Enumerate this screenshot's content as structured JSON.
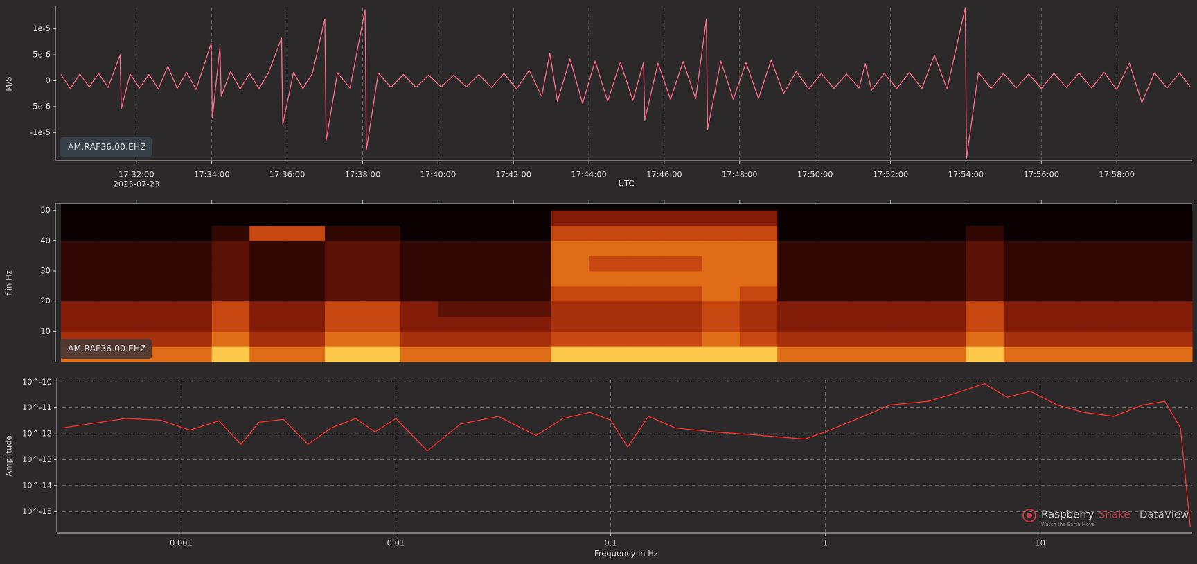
{
  "chart_data": [
    {
      "type": "line",
      "ylabel": "M/S",
      "xlabel": "UTC",
      "date_label": "2023-07-23",
      "station_label": "AM.RAF36.00.EHZ",
      "color": "#ff6e8c",
      "grid": true,
      "xlim": [
        "17:30:00",
        "18:00:00"
      ],
      "xticks": [
        "17:32:00",
        "17:34:00",
        "17:36:00",
        "17:38:00",
        "17:40:00",
        "17:42:00",
        "17:44:00",
        "17:46:00",
        "17:48:00",
        "17:50:00",
        "17:52:00",
        "17:54:00",
        "17:56:00",
        "17:58:00"
      ],
      "ylim": [
        -1.53e-05,
        1.41e-05
      ],
      "yticks": [
        {
          "value": 1e-05,
          "label": "1e-5"
        },
        {
          "value": 5e-06,
          "label": "5e-6"
        },
        0,
        {
          "value": -5e-06,
          "label": "-5e-6"
        },
        {
          "value": -1e-05,
          "label": "-1e-5"
        }
      ],
      "x": [
        "17:30:00",
        "17:30:15",
        "17:30:30",
        "17:30:45",
        "17:31:00",
        "17:31:15",
        "17:31:34",
        "17:31:36",
        "17:31:50",
        "17:32:05",
        "17:32:20",
        "17:32:35",
        "17:32:50",
        "17:33:05",
        "17:33:20",
        "17:33:35",
        "17:33:59",
        "17:34:01",
        "17:34:13",
        "17:34:15",
        "17:34:30",
        "17:34:45",
        "17:35:00",
        "17:35:15",
        "17:35:30",
        "17:35:51",
        "17:35:53",
        "17:36:10",
        "17:36:25",
        "17:36:40",
        "17:37:00",
        "17:37:02",
        "17:37:20",
        "17:37:40",
        "17:38:04",
        "17:38:06",
        "17:38:25",
        "17:38:45",
        "17:39:05",
        "17:39:25",
        "17:39:45",
        "17:40:05",
        "17:40:25",
        "17:40:45",
        "17:41:05",
        "17:41:25",
        "17:41:45",
        "17:42:05",
        "17:42:25",
        "17:42:45",
        "17:42:58",
        "17:43:10",
        "17:43:30",
        "17:43:50",
        "17:44:10",
        "17:44:30",
        "17:44:50",
        "17:45:10",
        "17:45:27",
        "17:45:29",
        "17:45:50",
        "17:46:10",
        "17:46:30",
        "17:46:50",
        "17:47:07",
        "17:47:09",
        "17:47:30",
        "17:47:50",
        "17:48:10",
        "17:48:30",
        "17:48:50",
        "17:49:10",
        "17:49:30",
        "17:49:50",
        "17:50:10",
        "17:50:30",
        "17:50:50",
        "17:51:10",
        "17:51:20",
        "17:51:30",
        "17:51:50",
        "17:52:10",
        "17:52:30",
        "17:52:50",
        "17:53:10",
        "17:53:30",
        "17:53:59",
        "17:54:01",
        "17:54:20",
        "17:54:40",
        "17:55:00",
        "17:55:20",
        "17:55:40",
        "17:56:00",
        "17:56:20",
        "17:56:40",
        "17:57:00",
        "17:57:20",
        "17:57:40",
        "17:58:00",
        "17:58:20",
        "17:58:40",
        "17:59:00",
        "17:59:20",
        "17:59:40",
        "17:59:57"
      ],
      "values": [
        1.2e-06,
        -1.5e-06,
        1.3e-06,
        -1.2e-06,
        1.4e-06,
        -1.3e-06,
        5e-06,
        -5.4e-06,
        1.3e-06,
        -1.4e-06,
        1.2e-06,
        -1.6e-06,
        2.8e-06,
        -1.5e-06,
        1.6e-06,
        -1.7e-06,
        7.2e-06,
        -7.2e-06,
        6.5e-06,
        -3e-06,
        1.8e-06,
        -1.6e-06,
        1.4e-06,
        -1.5e-06,
        1.5e-06,
        8.2e-06,
        -8.4e-06,
        1.6e-06,
        -1.5e-06,
        1.4e-06,
        1.19e-05,
        -1.16e-05,
        1.5e-06,
        -1.4e-06,
        1.37e-05,
        -1.34e-05,
        1.5e-06,
        -1.3e-06,
        1.2e-06,
        -1.3e-06,
        1.1e-06,
        -1.2e-06,
        1.1e-06,
        -1.2e-06,
        1.2e-06,
        -1.3e-06,
        1.4e-06,
        -1.6e-06,
        2e-06,
        -3e-06,
        5.3e-06,
        -4e-06,
        4.2e-06,
        -4.4e-06,
        3.8e-06,
        -4e-06,
        3.6e-06,
        -3.8e-06,
        3.5e-06,
        -7.6e-06,
        3.4e-06,
        -3.6e-06,
        3.7e-06,
        -3.5e-06,
        1.19e-05,
        -9.4e-06,
        3.8e-06,
        -3.6e-06,
        3.5e-06,
        -3.4e-06,
        4e-06,
        -2.5e-06,
        1.8e-06,
        -1.6e-06,
        1.4e-06,
        -1.5e-06,
        1.3e-06,
        -1.4e-06,
        3.3e-06,
        -1.8e-06,
        1.4e-06,
        -1.5e-06,
        1.6e-06,
        -1.5e-06,
        4.9e-06,
        -1.6e-06,
        1.41e-05,
        -1.5e-05,
        1.6e-06,
        -1.5e-06,
        1.4e-06,
        -1.4e-06,
        1.3e-06,
        -1.5e-06,
        1.4e-06,
        -1.3e-06,
        1.5e-06,
        -1.4e-06,
        1.6e-06,
        -1.7e-06,
        3.4e-06,
        -4.2e-06,
        1.5e-06,
        -1.4e-06,
        1.5e-06,
        -1.2e-06
      ]
    },
    {
      "type": "heatmap",
      "ylabel": "f in Hz",
      "station_label": "AM.RAF36.00.EHZ",
      "colormap": [
        "#0a0202",
        "#4a0c05",
        "#8a1e08",
        "#c24010",
        "#e87a18",
        "#ffc84a"
      ],
      "xlim": [
        "17:30:00",
        "18:00:00"
      ],
      "xticks": [
        "17:32:00",
        "17:34:00",
        "17:36:00",
        "17:38:00",
        "17:40:00",
        "17:42:00",
        "17:44:00",
        "17:46:00",
        "17:48:00",
        "17:50:00",
        "17:52:00",
        "17:54:00",
        "17:56:00",
        "17:58:00"
      ],
      "ylim": [
        0,
        52
      ],
      "yticks": [
        10,
        20,
        30,
        40,
        50
      ],
      "xbins": [
        "17:30:00",
        "17:31:00",
        "17:32:00",
        "17:33:00",
        "17:34:00",
        "17:35:00",
        "17:36:00",
        "17:37:00",
        "17:38:00",
        "17:39:00",
        "17:40:00",
        "17:41:00",
        "17:42:00",
        "17:43:00",
        "17:44:00",
        "17:45:00",
        "17:46:00",
        "17:47:00",
        "17:48:00",
        "17:49:00",
        "17:50:00",
        "17:51:00",
        "17:52:00",
        "17:53:00",
        "17:54:00",
        "17:55:00",
        "17:56:00",
        "17:57:00",
        "17:58:00",
        "17:59:00",
        "18:00:00"
      ],
      "ybins": [
        0,
        5,
        10,
        15,
        20,
        25,
        30,
        35,
        40,
        45,
        50
      ],
      "z": [
        [
          7,
          7,
          7,
          7,
          9,
          7,
          7,
          9,
          9,
          7,
          7,
          7,
          7,
          9,
          9,
          9,
          9,
          9,
          9,
          7,
          7,
          7,
          7,
          7,
          9,
          7,
          7,
          7,
          7,
          7
        ],
        [
          5,
          5,
          5,
          5,
          7,
          5,
          5,
          7,
          7,
          5,
          5,
          5,
          5,
          6,
          6,
          6,
          6,
          7,
          6,
          5,
          5,
          5,
          5,
          5,
          7,
          5,
          5,
          5,
          5,
          5
        ],
        [
          4,
          4,
          4,
          4,
          6,
          4,
          4,
          6,
          6,
          4,
          4,
          4,
          4,
          5,
          5,
          5,
          5,
          6,
          5,
          4,
          4,
          4,
          4,
          4,
          6,
          4,
          4,
          4,
          4,
          4
        ],
        [
          4,
          4,
          4,
          4,
          6,
          4,
          4,
          6,
          6,
          4,
          3,
          3,
          3,
          5,
          5,
          5,
          5,
          6,
          5,
          4,
          4,
          4,
          4,
          4,
          6,
          4,
          4,
          4,
          4,
          4
        ],
        [
          2,
          2,
          2,
          2,
          3,
          2,
          2,
          3,
          3,
          2,
          2,
          2,
          2,
          6,
          6,
          6,
          6,
          7,
          6,
          2,
          2,
          2,
          2,
          2,
          3,
          2,
          2,
          2,
          2,
          2
        ],
        [
          2,
          2,
          2,
          2,
          3,
          2,
          2,
          3,
          3,
          2,
          2,
          2,
          2,
          7,
          7,
          7,
          7,
          7,
          7,
          2,
          2,
          2,
          2,
          2,
          3,
          2,
          2,
          2,
          2,
          2
        ],
        [
          2,
          2,
          2,
          2,
          3,
          2,
          2,
          3,
          3,
          2,
          2,
          2,
          2,
          7,
          6,
          6,
          6,
          7,
          7,
          2,
          2,
          2,
          2,
          2,
          3,
          2,
          2,
          2,
          2,
          2
        ],
        [
          2,
          2,
          2,
          2,
          3,
          2,
          2,
          3,
          3,
          2,
          2,
          2,
          2,
          7,
          7,
          7,
          7,
          7,
          7,
          2,
          2,
          2,
          2,
          2,
          3,
          2,
          2,
          2,
          2,
          2
        ],
        [
          1,
          1,
          1,
          1,
          2,
          6,
          6,
          2,
          2,
          1,
          1,
          1,
          1,
          6,
          6,
          6,
          6,
          6,
          6,
          1,
          1,
          1,
          1,
          1,
          2,
          1,
          1,
          1,
          1,
          1
        ],
        [
          1,
          1,
          1,
          1,
          1,
          1,
          1,
          1,
          1,
          1,
          1,
          1,
          1,
          4,
          4,
          4,
          4,
          4,
          4,
          1,
          1,
          1,
          1,
          1,
          1,
          1,
          1,
          1,
          1,
          1
        ]
      ]
    },
    {
      "type": "line",
      "xscale": "log",
      "yscale": "log",
      "ylabel": "Amplitude",
      "xlabel": "Frequency in Hz",
      "color": "#ff3030",
      "grid": true,
      "xlim": [
        0.00028,
        51
      ],
      "xticks": [
        0.001,
        0.01,
        0.1,
        1,
        10
      ],
      "ylim": [
        1.6e-16,
        1.23e-10
      ],
      "yticks": [
        {
          "value": 1e-10,
          "label": "10^-10"
        },
        {
          "value": 1e-11,
          "label": "10^-11"
        },
        {
          "value": 1e-12,
          "label": "10^-12"
        },
        {
          "value": 1e-13,
          "label": "10^-13"
        },
        {
          "value": 1e-14,
          "label": "10^-14"
        },
        {
          "value": 1e-15,
          "label": "10^-15"
        }
      ],
      "x": [
        0.00028,
        0.00055,
        0.0008,
        0.0011,
        0.0015,
        0.0019,
        0.0023,
        0.003,
        0.0039,
        0.005,
        0.0065,
        0.008,
        0.01,
        0.014,
        0.02,
        0.03,
        0.045,
        0.06,
        0.08,
        0.1,
        0.12,
        0.15,
        0.2,
        0.3,
        0.5,
        0.8,
        1,
        1.5,
        2,
        3,
        4,
        5.5,
        7,
        9,
        12,
        16,
        22,
        30,
        38,
        45,
        50
      ],
      "values": [
        1.7e-12,
        3.9e-12,
        3.4e-12,
        1.4e-12,
        3.2e-12,
        3.9e-13,
        2.8e-12,
        3.6e-12,
        3.9e-13,
        1.7e-12,
        3.9e-12,
        1.2e-12,
        3.9e-12,
        2.2e-13,
        2.4e-12,
        4.7e-12,
        8.7e-13,
        3.9e-12,
        6.7e-12,
        3.4e-12,
        3.1e-13,
        4.7e-12,
        1.7e-12,
        1.2e-12,
        8.7e-13,
        6.3e-13,
        1.2e-12,
        4.7e-12,
        1.3e-11,
        1.8e-11,
        3.6e-11,
        8.7e-11,
        2.6e-11,
        4.4e-11,
        1.3e-11,
        6.7e-12,
        4.7e-12,
        1.3e-11,
        1.8e-11,
        1.7e-12,
        2.6e-16
      ]
    }
  ],
  "watermark": {
    "brand": "Raspberry",
    "brand2": "Shake",
    "product": "DataView",
    "tagline": "Watch the Earth Move"
  }
}
